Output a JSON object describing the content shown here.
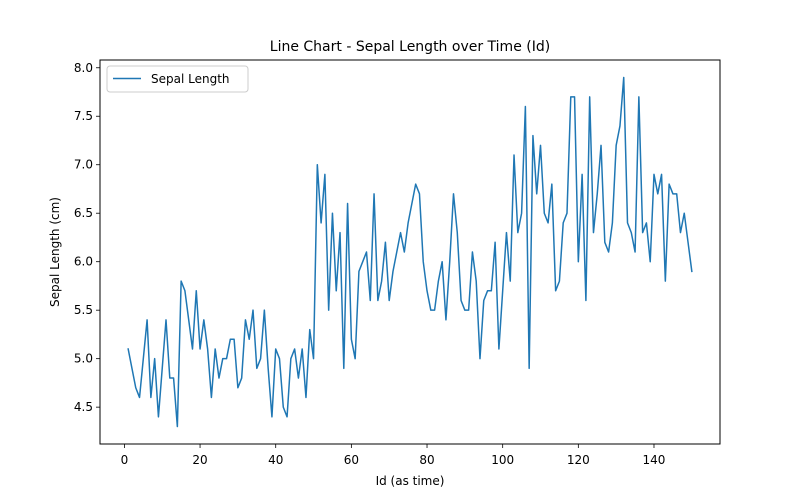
{
  "chart_data": {
    "type": "line",
    "title": "Line Chart - Sepal Length over Time (Id)",
    "xlabel": "Id (as time)",
    "ylabel": "Sepal Length (cm)",
    "xlim": [
      -6.45,
      157.45
    ],
    "ylim": [
      4.12,
      8.08
    ],
    "xticks": [
      0,
      20,
      40,
      60,
      80,
      100,
      120,
      140
    ],
    "yticks": [
      4.5,
      5.0,
      5.5,
      6.0,
      6.5,
      7.0,
      7.5,
      8.0
    ],
    "xtick_labels": [
      "0",
      "20",
      "40",
      "60",
      "80",
      "100",
      "120",
      "140"
    ],
    "ytick_labels": [
      "4.5",
      "5.0",
      "5.5",
      "6.0",
      "6.5",
      "7.0",
      "7.5",
      "8.0"
    ],
    "grid": false,
    "legend": {
      "position": "top-left",
      "entries": [
        "Sepal Length"
      ]
    },
    "series": [
      {
        "name": "Sepal Length",
        "color": "#1f77b4",
        "x": [
          1,
          2,
          3,
          4,
          5,
          6,
          7,
          8,
          9,
          10,
          11,
          12,
          13,
          14,
          15,
          16,
          17,
          18,
          19,
          20,
          21,
          22,
          23,
          24,
          25,
          26,
          27,
          28,
          29,
          30,
          31,
          32,
          33,
          34,
          35,
          36,
          37,
          38,
          39,
          40,
          41,
          42,
          43,
          44,
          45,
          46,
          47,
          48,
          49,
          50,
          51,
          52,
          53,
          54,
          55,
          56,
          57,
          58,
          59,
          60,
          61,
          62,
          63,
          64,
          65,
          66,
          67,
          68,
          69,
          70,
          71,
          72,
          73,
          74,
          75,
          76,
          77,
          78,
          79,
          80,
          81,
          82,
          83,
          84,
          85,
          86,
          87,
          88,
          89,
          90,
          91,
          92,
          93,
          94,
          95,
          96,
          97,
          98,
          99,
          100,
          101,
          102,
          103,
          104,
          105,
          106,
          107,
          108,
          109,
          110,
          111,
          112,
          113,
          114,
          115,
          116,
          117,
          118,
          119,
          120,
          121,
          122,
          123,
          124,
          125,
          126,
          127,
          128,
          129,
          130,
          131,
          132,
          133,
          134,
          135,
          136,
          137,
          138,
          139,
          140,
          141,
          142,
          143,
          144,
          145,
          146,
          147,
          148,
          149,
          150
        ],
        "y": [
          5.1,
          4.9,
          4.7,
          4.6,
          5.0,
          5.4,
          4.6,
          5.0,
          4.4,
          4.9,
          5.4,
          4.8,
          4.8,
          4.3,
          5.8,
          5.7,
          5.4,
          5.1,
          5.7,
          5.1,
          5.4,
          5.1,
          4.6,
          5.1,
          4.8,
          5.0,
          5.0,
          5.2,
          5.2,
          4.7,
          4.8,
          5.4,
          5.2,
          5.5,
          4.9,
          5.0,
          5.5,
          4.9,
          4.4,
          5.1,
          5.0,
          4.5,
          4.4,
          5.0,
          5.1,
          4.8,
          5.1,
          4.6,
          5.3,
          5.0,
          7.0,
          6.4,
          6.9,
          5.5,
          6.5,
          5.7,
          6.3,
          4.9,
          6.6,
          5.2,
          5.0,
          5.9,
          6.0,
          6.1,
          5.6,
          6.7,
          5.6,
          5.8,
          6.2,
          5.6,
          5.9,
          6.1,
          6.3,
          6.1,
          6.4,
          6.6,
          6.8,
          6.7,
          6.0,
          5.7,
          5.5,
          5.5,
          5.8,
          6.0,
          5.4,
          6.0,
          6.7,
          6.3,
          5.6,
          5.5,
          5.5,
          6.1,
          5.8,
          5.0,
          5.6,
          5.7,
          5.7,
          6.2,
          5.1,
          5.7,
          6.3,
          5.8,
          7.1,
          6.3,
          6.5,
          7.6,
          4.9,
          7.3,
          6.7,
          7.2,
          6.5,
          6.4,
          6.8,
          5.7,
          5.8,
          6.4,
          6.5,
          7.7,
          7.7,
          6.0,
          6.9,
          5.6,
          7.7,
          6.3,
          6.7,
          7.2,
          6.2,
          6.1,
          6.4,
          7.2,
          7.4,
          7.9,
          6.4,
          6.3,
          6.1,
          7.7,
          6.3,
          6.4,
          6.0,
          6.9,
          6.7,
          6.9,
          5.8,
          6.8,
          6.7,
          6.7,
          6.3,
          6.5,
          6.2,
          5.9
        ]
      }
    ]
  }
}
